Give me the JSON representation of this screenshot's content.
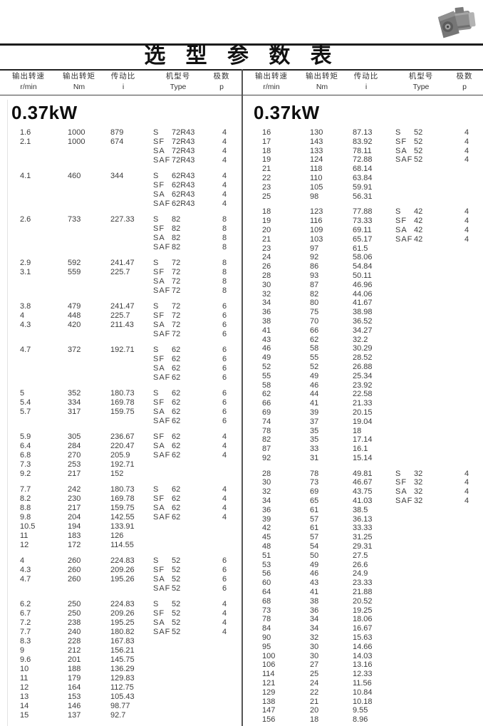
{
  "title": "选 型 参 数 表",
  "motor_photo": "gear-motor-photo",
  "columns": {
    "headers": [
      {
        "cn": "输出转速",
        "unit": "r/min"
      },
      {
        "cn": "输出转矩",
        "unit": "Nm"
      },
      {
        "cn": "传动比",
        "unit": "i"
      },
      {
        "cn": "机型号",
        "unit": "Type"
      },
      {
        "cn": "极数",
        "unit": "p"
      }
    ]
  },
  "left": {
    "power": "0.37kW",
    "blocks": [
      {
        "rows": [
          [
            "1.6",
            "1000",
            "879",
            "S",
            "72R43",
            "4"
          ],
          [
            "2.1",
            "1000",
            "674",
            "SF",
            "72R43",
            "4"
          ],
          [
            "",
            "",
            "",
            "SA",
            "72R43",
            "4"
          ],
          [
            "",
            "",
            "",
            "SAF",
            "72R43",
            "4"
          ]
        ]
      },
      {
        "rows": [
          [
            "4.1",
            "460",
            "344",
            "S",
            "62R43",
            "4"
          ],
          [
            "",
            "",
            "",
            "SF",
            "62R43",
            "4"
          ],
          [
            "",
            "",
            "",
            "SA",
            "62R43",
            "4"
          ],
          [
            "",
            "",
            "",
            "SAF",
            "62R43",
            "4"
          ]
        ]
      },
      {
        "rows": [
          [
            "2.6",
            "733",
            "227.33",
            "S",
            "82",
            "8"
          ],
          [
            "",
            "",
            "",
            "SF",
            "82",
            "8"
          ],
          [
            "",
            "",
            "",
            "SA",
            "82",
            "8"
          ],
          [
            "",
            "",
            "",
            "SAF",
            "82",
            "8"
          ]
        ]
      },
      {
        "rows": [
          [
            "2.9",
            "592",
            "241.47",
            "S",
            "72",
            "8"
          ],
          [
            "3.1",
            "559",
            "225.7",
            "SF",
            "72",
            "8"
          ],
          [
            "",
            "",
            "",
            "SA",
            "72",
            "8"
          ],
          [
            "",
            "",
            "",
            "SAF",
            "72",
            "8"
          ]
        ]
      },
      {
        "rows": [
          [
            "3.8",
            "479",
            "241.47",
            "S",
            "72",
            "6"
          ],
          [
            "4",
            "448",
            "225.7",
            "SF",
            "72",
            "6"
          ],
          [
            "4.3",
            "420",
            "211.43",
            "SA",
            "72",
            "6"
          ],
          [
            "",
            "",
            "",
            "SAF",
            "72",
            "6"
          ]
        ]
      },
      {
        "rows": [
          [
            "4.7",
            "372",
            "192.71",
            "S",
            "62",
            "6"
          ],
          [
            "",
            "",
            "",
            "SF",
            "62",
            "6"
          ],
          [
            "",
            "",
            "",
            "SA",
            "62",
            "6"
          ],
          [
            "",
            "",
            "",
            "SAF",
            "62",
            "6"
          ]
        ]
      },
      {
        "rows": [
          [
            "5",
            "352",
            "180.73",
            "S",
            "62",
            "6"
          ],
          [
            "5.4",
            "334",
            "169.78",
            "SF",
            "62",
            "6"
          ],
          [
            "5.7",
            "317",
            "159.75",
            "SA",
            "62",
            "6"
          ],
          [
            "",
            "",
            "",
            "SAF",
            "62",
            "6"
          ]
        ]
      },
      {
        "rows": [
          [
            "5.9",
            "305",
            "236.67",
            "SF",
            "62",
            "4"
          ],
          [
            "6.4",
            "284",
            "220.47",
            "SA",
            "62",
            "4"
          ],
          [
            "6.8",
            "270",
            "205.9",
            "SAF",
            "62",
            "4"
          ],
          [
            "7.3",
            "253",
            "192.71",
            "",
            "",
            ""
          ],
          [
            "9.2",
            "217",
            "152",
            "",
            "",
            ""
          ]
        ]
      },
      {
        "rows": [
          [
            "7.7",
            "242",
            "180.73",
            "S",
            "62",
            "4"
          ],
          [
            "8.2",
            "230",
            "169.78",
            "SF",
            "62",
            "4"
          ],
          [
            "8.8",
            "217",
            "159.75",
            "SA",
            "62",
            "4"
          ],
          [
            "9.8",
            "204",
            "142.55",
            "SAF",
            "62",
            "4"
          ],
          [
            "10.5",
            "194",
            "133.91",
            "",
            "",
            ""
          ],
          [
            "11",
            "183",
            "126",
            "",
            "",
            ""
          ],
          [
            "12",
            "172",
            "114.55",
            "",
            "",
            ""
          ]
        ]
      },
      {
        "rows": [
          [
            "4",
            "260",
            "224.83",
            "S",
            "52",
            "6"
          ],
          [
            "4.3",
            "260",
            "209.26",
            "SF",
            "52",
            "6"
          ],
          [
            "4.7",
            "260",
            "195.26",
            "SA",
            "52",
            "6"
          ],
          [
            "",
            "",
            "",
            "SAF",
            "52",
            "6"
          ]
        ]
      },
      {
        "rows": [
          [
            "6.2",
            "250",
            "224.83",
            "S",
            "52",
            "4"
          ],
          [
            "6.7",
            "250",
            "209.26",
            "SF",
            "52",
            "4"
          ],
          [
            "7.2",
            "238",
            "195.25",
            "SA",
            "52",
            "4"
          ],
          [
            "7.7",
            "240",
            "180.82",
            "SAF",
            "52",
            "4"
          ],
          [
            "8.3",
            "228",
            "167.83",
            "",
            "",
            ""
          ],
          [
            "9",
            "212",
            "156.21",
            "",
            "",
            ""
          ],
          [
            "9.6",
            "201",
            "145.75",
            "",
            "",
            ""
          ],
          [
            "10",
            "188",
            "136.29",
            "",
            "",
            ""
          ],
          [
            "11",
            "179",
            "129.83",
            "",
            "",
            ""
          ],
          [
            "12",
            "164",
            "112.75",
            "",
            "",
            ""
          ],
          [
            "13",
            "153",
            "105.43",
            "",
            "",
            ""
          ],
          [
            "14",
            "146",
            "98.77",
            "",
            "",
            ""
          ],
          [
            "15",
            "137",
            "92.7",
            "",
            "",
            ""
          ]
        ]
      }
    ]
  },
  "right": {
    "power": "0.37kW",
    "blocks": [
      {
        "rows": [
          [
            "16",
            "130",
            "87.13",
            "S",
            "52",
            "4"
          ],
          [
            "17",
            "143",
            "83.92",
            "SF",
            "52",
            "4"
          ],
          [
            "18",
            "133",
            "78.11",
            "SA",
            "52",
            "4"
          ],
          [
            "19",
            "124",
            "72.88",
            "SAF",
            "52",
            "4"
          ],
          [
            "21",
            "118",
            "68.14",
            "",
            "",
            ""
          ],
          [
            "22",
            "110",
            "63.84",
            "",
            "",
            ""
          ],
          [
            "23",
            "105",
            "59.91",
            "",
            "",
            ""
          ],
          [
            "25",
            "98",
            "56.31",
            "",
            "",
            ""
          ]
        ]
      },
      {
        "rows": [
          [
            "18",
            "123",
            "77.88",
            "S",
            "42",
            "4"
          ],
          [
            "19",
            "116",
            "73.33",
            "SF",
            "42",
            "4"
          ],
          [
            "20",
            "109",
            "69.11",
            "SA",
            "42",
            "4"
          ],
          [
            "21",
            "103",
            "65.17",
            "SAF",
            "42",
            "4"
          ],
          [
            "23",
            "97",
            "61.5",
            "",
            "",
            ""
          ],
          [
            "24",
            "92",
            "58.06",
            "",
            "",
            ""
          ],
          [
            "26",
            "86",
            "54.84",
            "",
            "",
            ""
          ],
          [
            "28",
            "93",
            "50.11",
            "",
            "",
            ""
          ],
          [
            "30",
            "87",
            "46.96",
            "",
            "",
            ""
          ],
          [
            "32",
            "82",
            "44.06",
            "",
            "",
            ""
          ],
          [
            "34",
            "80",
            "41.67",
            "",
            "",
            ""
          ],
          [
            "36",
            "75",
            "38.98",
            "",
            "",
            ""
          ],
          [
            "38",
            "70",
            "36.52",
            "",
            "",
            ""
          ],
          [
            "41",
            "66",
            "34.27",
            "",
            "",
            ""
          ],
          [
            "43",
            "62",
            "32.2",
            "",
            "",
            ""
          ],
          [
            "46",
            "58",
            "30.29",
            "",
            "",
            ""
          ],
          [
            "49",
            "55",
            "28.52",
            "",
            "",
            ""
          ],
          [
            "52",
            "52",
            "26.88",
            "",
            "",
            ""
          ],
          [
            "55",
            "49",
            "25.34",
            "",
            "",
            ""
          ],
          [
            "58",
            "46",
            "23.92",
            "",
            "",
            ""
          ],
          [
            "62",
            "44",
            "22.58",
            "",
            "",
            ""
          ],
          [
            "66",
            "41",
            "21.33",
            "",
            "",
            ""
          ],
          [
            "69",
            "39",
            "20.15",
            "",
            "",
            ""
          ],
          [
            "74",
            "37",
            "19.04",
            "",
            "",
            ""
          ],
          [
            "78",
            "35",
            "18",
            "",
            "",
            ""
          ],
          [
            "82",
            "35",
            "17.14",
            "",
            "",
            ""
          ],
          [
            "87",
            "33",
            "16.1",
            "",
            "",
            ""
          ],
          [
            "92",
            "31",
            "15.14",
            "",
            "",
            ""
          ]
        ]
      },
      {
        "rows": [
          [
            "28",
            "78",
            "49.81",
            "S",
            "32",
            "4"
          ],
          [
            "30",
            "73",
            "46.67",
            "SF",
            "32",
            "4"
          ],
          [
            "32",
            "69",
            "43.75",
            "SA",
            "32",
            "4"
          ],
          [
            "34",
            "65",
            "41.03",
            "SAF",
            "32",
            "4"
          ],
          [
            "36",
            "61",
            "38.5",
            "",
            "",
            ""
          ],
          [
            "39",
            "57",
            "36.13",
            "",
            "",
            ""
          ],
          [
            "42",
            "61",
            "33.33",
            "",
            "",
            ""
          ],
          [
            "45",
            "57",
            "31.25",
            "",
            "",
            ""
          ],
          [
            "48",
            "54",
            "29.31",
            "",
            "",
            ""
          ],
          [
            "51",
            "50",
            "27.5",
            "",
            "",
            ""
          ],
          [
            "53",
            "49",
            "26.6",
            "",
            "",
            ""
          ],
          [
            "56",
            "46",
            "24.9",
            "",
            "",
            ""
          ],
          [
            "60",
            "43",
            "23.33",
            "",
            "",
            ""
          ],
          [
            "64",
            "41",
            "21.88",
            "",
            "",
            ""
          ],
          [
            "68",
            "38",
            "20.52",
            "",
            "",
            ""
          ],
          [
            "73",
            "36",
            "19.25",
            "",
            "",
            ""
          ],
          [
            "78",
            "34",
            "18.06",
            "",
            "",
            ""
          ],
          [
            "84",
            "34",
            "16.67",
            "",
            "",
            ""
          ],
          [
            "90",
            "32",
            "15.63",
            "",
            "",
            ""
          ],
          [
            "95",
            "30",
            "14.66",
            "",
            "",
            ""
          ],
          [
            "100",
            "30",
            "14.03",
            "",
            "",
            ""
          ],
          [
            "106",
            "27",
            "13.16",
            "",
            "",
            ""
          ],
          [
            "114",
            "25",
            "12.33",
            "",
            "",
            ""
          ],
          [
            "121",
            "24",
            "11.56",
            "",
            "",
            ""
          ],
          [
            "129",
            "22",
            "10.84",
            "",
            "",
            ""
          ],
          [
            "138",
            "21",
            "10.18",
            "",
            "",
            ""
          ],
          [
            "147",
            "20",
            "9.55",
            "",
            "",
            ""
          ],
          [
            "156",
            "18",
            "8.96",
            "",
            "",
            ""
          ]
        ]
      }
    ]
  }
}
